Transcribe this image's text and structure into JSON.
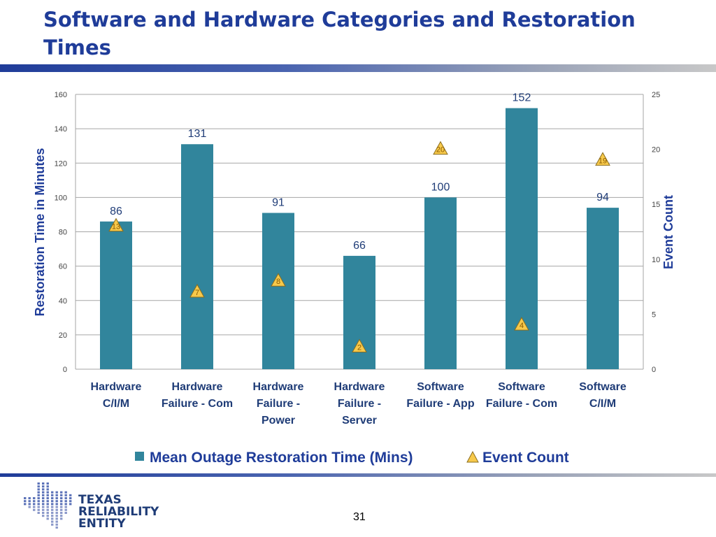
{
  "page": {
    "title": "Software and Hardware Categories and Restoration Times",
    "page_number": "31",
    "logo": {
      "name": "Texas Reliability Entity",
      "lines": [
        "TEXAS",
        "RELIABILITY",
        "ENTITY"
      ]
    }
  },
  "colors": {
    "bar": "#31859c",
    "marker_fill": "#f7c94b",
    "marker_stroke": "#8a6d1e",
    "title": "#1f3c99",
    "label": "#1f3c77"
  },
  "chart_data": {
    "type": "bar",
    "categories": [
      [
        "Hardware",
        "C/I/M"
      ],
      [
        "Hardware",
        "Failure - Com"
      ],
      [
        "Hardware",
        "Failure -",
        "Power"
      ],
      [
        "Hardware",
        "Failure -",
        "Server"
      ],
      [
        "Software",
        "Failure - App"
      ],
      [
        "Software",
        "Failure - Com"
      ],
      [
        "Software",
        "C/I/M"
      ]
    ],
    "series": [
      {
        "name": "Mean Outage Restoration Time (Mins)",
        "kind": "bar",
        "axis": "primary",
        "values": [
          86,
          131,
          91,
          66,
          100,
          152,
          94
        ]
      },
      {
        "name": "Event Count",
        "kind": "triangle-marker",
        "axis": "secondary",
        "values": [
          13,
          7,
          8,
          2,
          20,
          4,
          19
        ]
      }
    ],
    "ylabel": "Restoration Time in Minutes",
    "y2label": "Event Count",
    "ylim": [
      0,
      160
    ],
    "y2lim": [
      0,
      25
    ],
    "yticks": [
      0,
      20,
      40,
      60,
      80,
      100,
      120,
      140,
      160
    ],
    "y2ticks": [
      0,
      5,
      10,
      15,
      20,
      25
    ],
    "grid": true,
    "legend_position": "bottom"
  }
}
